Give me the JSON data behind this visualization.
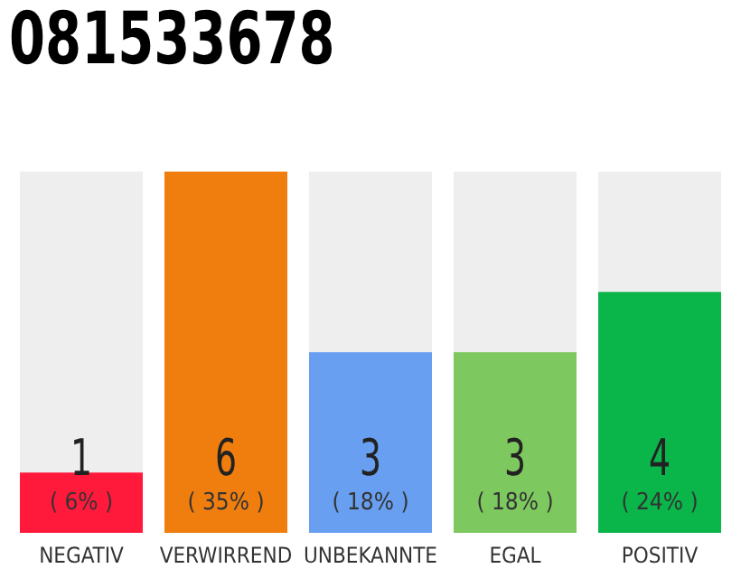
{
  "chart_data": {
    "type": "bar",
    "title": "081533678",
    "categories": [
      "NEGATIV",
      "VERWIRREND",
      "UNBEKANNTE",
      "EGAL",
      "POSITIV"
    ],
    "values": [
      1,
      6,
      3,
      3,
      4
    ],
    "colors": [
      "#ff1a3c",
      "#f07e0f",
      "#689ff0",
      "#7ec95f",
      "#0ab54a"
    ],
    "ylim": [
      0,
      6
    ],
    "tick_labels": "x",
    "grid": false,
    "legend": false,
    "data_labels": true,
    "annotations": [
      "( 6% )",
      "( 35% )",
      "( 18% )",
      "( 18% )",
      "( 24% )"
    ]
  }
}
